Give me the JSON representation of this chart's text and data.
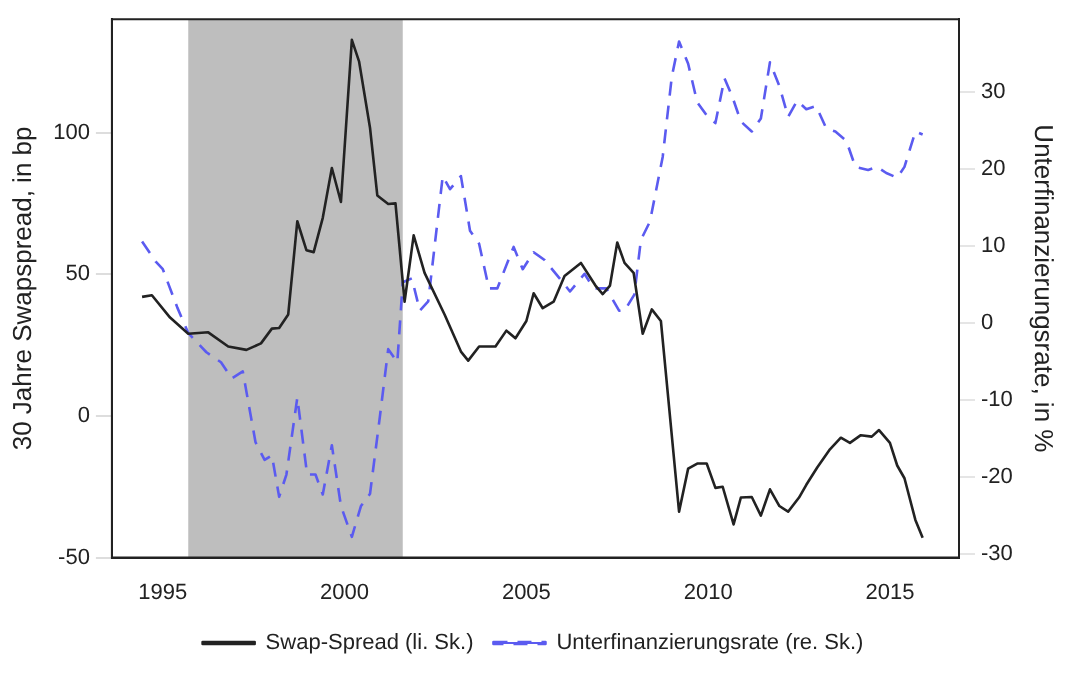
{
  "chart_data": {
    "type": "line",
    "ylabel": "30 Jahre Swapspread, in bp",
    "y2label": "Unterfinanzierungsrate, in %",
    "xlim": [
      1993.6,
      2016.9
    ],
    "xticks": [
      1995,
      2000,
      2005,
      2010,
      2015
    ],
    "ylim": [
      -50,
      140
    ],
    "yticks": [
      -50,
      0,
      50,
      100
    ],
    "y2lim": [
      -30.5,
      39.5
    ],
    "y2ticks": [
      -30,
      -20,
      -10,
      0,
      10,
      20,
      30
    ],
    "grid": false,
    "legend": "bottom",
    "marker": "none",
    "bands": [
      {
        "axis": "x",
        "from": 1995.7,
        "to": 2001.6,
        "color": "#bebebe"
      }
    ],
    "series": [
      {
        "name": "Swap-Spread (li. Sk.)",
        "color": "#222222",
        "line_style": "solid",
        "x": [
          1994.43,
          1994.7,
          1995.2,
          1995.7,
          1996.25,
          1996.8,
          1997.3,
          1997.7,
          1998.0,
          1998.2,
          1998.45,
          1998.7,
          1998.95,
          1999.15,
          1999.4,
          1999.65,
          1999.9,
          2000.2,
          2000.4,
          2000.7,
          2000.9,
          2001.2,
          2001.4,
          2001.65,
          2001.9,
          2002.2,
          2002.75,
          2003.2,
          2003.4,
          2003.7,
          2004.15,
          2004.45,
          2004.7,
          2005.0,
          2005.2,
          2005.45,
          2005.75,
          2006.05,
          2006.5,
          2006.9,
          2007.1,
          2007.3,
          2007.5,
          2007.7,
          2007.95,
          2008.2,
          2008.45,
          2008.7,
          2009.2,
          2009.45,
          2009.7,
          2009.96,
          2010.2,
          2010.4,
          2010.7,
          2010.9,
          2011.2,
          2011.45,
          2011.7,
          2011.96,
          2012.2,
          2012.5,
          2012.7,
          2013.0,
          2013.35,
          2013.65,
          2013.9,
          2014.2,
          2014.5,
          2014.7,
          2015.0,
          2015.2,
          2015.4,
          2015.7,
          2015.9
        ],
        "values": [
          42,
          42.6,
          34.7,
          29,
          29.5,
          24.5,
          23.3,
          25.6,
          30.8,
          31,
          35.8,
          68.7,
          58.5,
          57.8,
          69.9,
          87.5,
          75.5,
          132.7,
          125,
          101.6,
          77.8,
          74.8,
          75,
          40.3,
          63.7,
          50.5,
          35.8,
          22.7,
          19.5,
          24.5,
          24.5,
          30.1,
          27.4,
          33.5,
          43.3,
          38,
          40.3,
          49.4,
          54,
          46,
          43,
          46,
          61.2,
          54,
          50.5,
          29,
          37.6,
          33.5,
          -33.8,
          -18.6,
          -16.8,
          -16.8,
          -25.4,
          -25,
          -38.3,
          -28.8,
          -28.6,
          -35.2,
          -25.9,
          -31.8,
          -33.8,
          -28.8,
          -24.3,
          -18.2,
          -11.8,
          -7.7,
          -9.5,
          -6.8,
          -7.3,
          -5,
          -9.5,
          -17.5,
          -22,
          -36.7,
          -43
        ]
      },
      {
        "name": "Unterfinanzierungsrate (re. Sk.)",
        "color": "#5b5bf0",
        "line_style": "dashed",
        "axis": "y2",
        "x": [
          1994.43,
          1994.8,
          1995.0,
          1995.4,
          1995.7,
          1996.2,
          1996.6,
          1996.9,
          1997.2,
          1997.55,
          1997.8,
          1998.0,
          1998.2,
          1998.4,
          1998.7,
          1998.97,
          1999.2,
          1999.4,
          1999.65,
          1999.9,
          2000.2,
          2000.45,
          2000.7,
          2000.97,
          2001.2,
          2001.45,
          2001.6,
          2001.85,
          2002.07,
          2002.3,
          2002.7,
          2002.9,
          2003.2,
          2003.45,
          2003.7,
          2003.97,
          2004.2,
          2004.65,
          2004.9,
          2005.2,
          2005.5,
          2006.0,
          2006.2,
          2006.6,
          2006.85,
          2007.2,
          2007.55,
          2007.7,
          2007.97,
          2008.15,
          2008.4,
          2008.75,
          2009.0,
          2009.2,
          2009.45,
          2009.7,
          2009.96,
          2010.2,
          2010.45,
          2010.66,
          2010.9,
          2011.2,
          2011.45,
          2011.7,
          2011.96,
          2012.2,
          2012.45,
          2012.7,
          2012.97,
          2013.25,
          2013.5,
          2013.8,
          2014.05,
          2014.4,
          2014.65,
          2014.9,
          2015.2,
          2015.4,
          2015.7,
          2015.9
        ],
        "values": [
          10.6,
          8,
          7,
          2,
          -1.3,
          -3.8,
          -5.1,
          -7.2,
          -6.3,
          -15.5,
          -17.8,
          -17.2,
          -22.6,
          -19.7,
          -9.7,
          -19.7,
          -19.7,
          -22.3,
          -15.9,
          -23.8,
          -27.8,
          -23.8,
          -22.2,
          -12.2,
          -3.4,
          -5.1,
          5.3,
          5.8,
          1.6,
          2.8,
          19.1,
          17.4,
          19.1,
          12,
          10.3,
          4.5,
          4.5,
          9.9,
          7,
          9.2,
          8.2,
          5.3,
          4.1,
          6.4,
          4.5,
          4.5,
          1.6,
          1.6,
          3.7,
          10.8,
          13.2,
          21.6,
          32,
          36.6,
          33.7,
          28.7,
          27,
          26,
          31.8,
          29.5,
          26.2,
          24.9,
          26.6,
          33.9,
          30.8,
          26.8,
          28.9,
          27.8,
          28.2,
          25.3,
          24.9,
          23.7,
          20.3,
          19.9,
          20.3,
          19.5,
          18.9,
          20.3,
          24.9,
          24.5
        ]
      }
    ]
  }
}
